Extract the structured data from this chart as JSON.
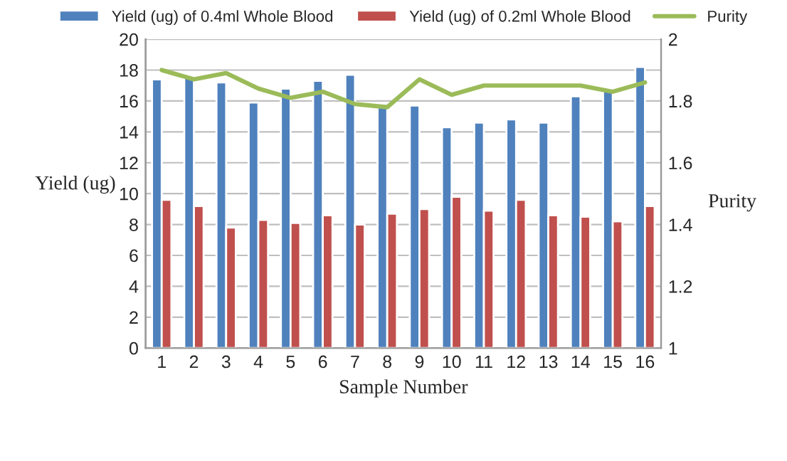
{
  "chart_data": {
    "type": "bar",
    "xlabel": "Sample Number",
    "ylabel": "Yield (ug)",
    "y2label": "Purity",
    "categories": [
      "1",
      "2",
      "3",
      "4",
      "5",
      "6",
      "7",
      "8",
      "9",
      "10",
      "11",
      "12",
      "13",
      "14",
      "15",
      "16"
    ],
    "series": [
      {
        "name": "Yield (ug) of 0.4ml Whole Blood",
        "color": "#4f81bd",
        "values": [
          17.4,
          17.5,
          17.2,
          15.9,
          16.8,
          17.3,
          17.7,
          15.8,
          15.7,
          14.3,
          14.6,
          14.8,
          14.6,
          16.3,
          16.8,
          18.2
        ]
      },
      {
        "name": "Yield (ug) of 0.2ml Whole Blood",
        "color": "#c0504d",
        "values": [
          9.6,
          9.2,
          7.8,
          8.3,
          8.1,
          8.6,
          8.0,
          8.7,
          9.0,
          9.8,
          8.9,
          9.6,
          8.6,
          8.5,
          8.2,
          9.2
        ]
      },
      {
        "name": "Purity",
        "type": "line",
        "axis": "y2",
        "color": "#9bbb59",
        "values": [
          1.9,
          1.87,
          1.89,
          1.84,
          1.81,
          1.83,
          1.79,
          1.78,
          1.87,
          1.82,
          1.85,
          1.85,
          1.85,
          1.85,
          1.83,
          1.86
        ]
      }
    ],
    "ylim": [
      0,
      20
    ],
    "yticks": [
      0,
      2,
      4,
      6,
      8,
      10,
      12,
      14,
      16,
      18,
      20
    ],
    "y2lim": [
      1,
      2
    ],
    "y2ticks": [
      1,
      1.2,
      1.4,
      1.6,
      1.8,
      2
    ],
    "grid": "y",
    "legend": "top",
    "marker": "none"
  }
}
